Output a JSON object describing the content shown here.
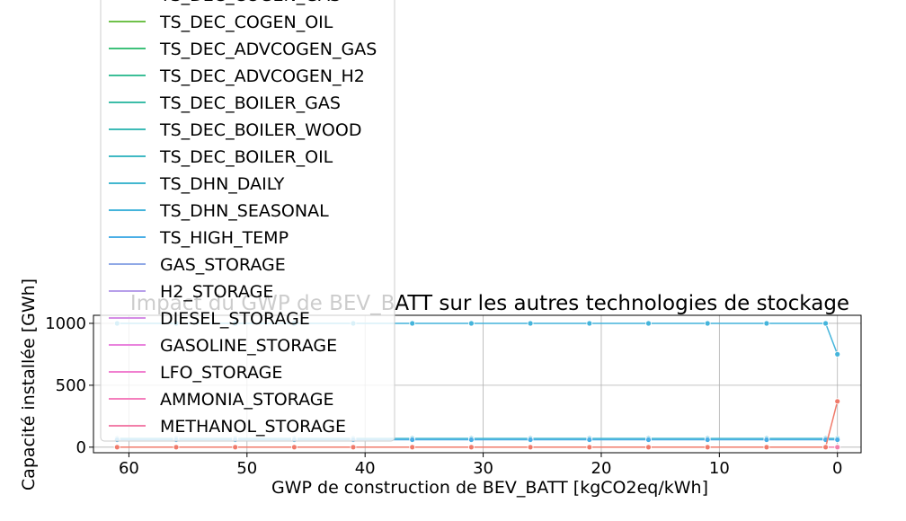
{
  "chart_data": {
    "type": "line",
    "title": "Impact du GWP de BEV_BATT sur les autres technologies de stockage",
    "xlabel": "GWP de construction de BEV_BATT [kgCO2eq/kWh]",
    "ylabel": "Capacité installée [GWh]",
    "x_inverted": true,
    "xlim": [
      63,
      -2
    ],
    "ylim": [
      -45,
      1065
    ],
    "x_ticks": [
      60,
      50,
      40,
      30,
      20,
      10,
      0
    ],
    "y_ticks": [
      0,
      500,
      1000
    ],
    "grid": true,
    "legend_position": "upper-left",
    "x": [
      61,
      56,
      51,
      46,
      41,
      36,
      31,
      26,
      21,
      16,
      11,
      6,
      1,
      0
    ],
    "series": [
      {
        "name": "TS_DEC_COGEN_GAS",
        "color": "#a9b630",
        "values": [
          0,
          0,
          0,
          0,
          0,
          0,
          0,
          0,
          0,
          0,
          0,
          0,
          0,
          0
        ]
      },
      {
        "name": "TS_DEC_COGEN_OIL",
        "color": "#6fc14a",
        "values": [
          0,
          0,
          0,
          0,
          0,
          0,
          0,
          0,
          0,
          0,
          0,
          0,
          0,
          0
        ]
      },
      {
        "name": "TS_DEC_ADVCOGEN_GAS",
        "color": "#3fc17a",
        "values": [
          0,
          0,
          0,
          0,
          0,
          0,
          0,
          0,
          0,
          0,
          0,
          0,
          0,
          0
        ]
      },
      {
        "name": "TS_DEC_ADVCOGEN_H2",
        "color": "#3cbf97",
        "values": [
          0,
          0,
          0,
          0,
          0,
          0,
          0,
          0,
          0,
          0,
          0,
          0,
          0,
          0
        ]
      },
      {
        "name": "TS_DEC_BOILER_GAS",
        "color": "#3dbda8",
        "values": [
          0,
          0,
          0,
          0,
          0,
          0,
          0,
          0,
          0,
          0,
          0,
          0,
          0,
          0
        ]
      },
      {
        "name": "TS_DEC_BOILER_WOOD",
        "color": "#3ebbb7",
        "values": [
          0,
          0,
          0,
          0,
          0,
          0,
          0,
          0,
          0,
          0,
          0,
          0,
          0,
          0
        ]
      },
      {
        "name": "TS_DEC_BOILER_OIL",
        "color": "#40b9c4",
        "values": [
          0,
          0,
          0,
          0,
          0,
          0,
          0,
          0,
          0,
          0,
          0,
          0,
          0,
          0
        ]
      },
      {
        "name": "TS_DHN_DAILY",
        "color": "#42b7cf",
        "values": [
          70,
          70,
          70,
          70,
          70,
          70,
          70,
          70,
          70,
          70,
          70,
          70,
          70,
          70
        ]
      },
      {
        "name": "TS_DHN_SEASONAL",
        "color": "#44b4db",
        "values": [
          1000,
          1000,
          1000,
          1000,
          1000,
          1000,
          1000,
          1000,
          1000,
          1000,
          1000,
          1000,
          1000,
          750
        ]
      },
      {
        "name": "TS_HIGH_TEMP",
        "color": "#4aaee6",
        "values": [
          60,
          60,
          60,
          60,
          60,
          60,
          60,
          60,
          60,
          60,
          60,
          60,
          60,
          60
        ]
      },
      {
        "name": "GAS_STORAGE",
        "color": "#8fa8e6",
        "values": [
          0,
          0,
          0,
          0,
          0,
          0,
          0,
          0,
          0,
          0,
          0,
          0,
          0,
          0
        ]
      },
      {
        "name": "H2_STORAGE",
        "color": "#b79fea",
        "values": [
          0,
          0,
          0,
          0,
          0,
          0,
          0,
          0,
          0,
          0,
          0,
          0,
          0,
          0
        ]
      },
      {
        "name": "DIESEL_STORAGE",
        "color": "#d58ee6",
        "values": [
          0,
          0,
          0,
          0,
          0,
          0,
          0,
          0,
          0,
          0,
          0,
          0,
          0,
          0
        ]
      },
      {
        "name": "GASOLINE_STORAGE",
        "color": "#e983dd",
        "values": [
          0,
          0,
          0,
          0,
          0,
          0,
          0,
          0,
          0,
          0,
          0,
          0,
          0,
          0
        ]
      },
      {
        "name": "LFO_STORAGE",
        "color": "#f07fcf",
        "values": [
          0,
          0,
          0,
          0,
          0,
          0,
          0,
          0,
          0,
          0,
          0,
          0,
          0,
          0
        ]
      },
      {
        "name": "AMMONIA_STORAGE",
        "color": "#f47fbd",
        "values": [
          0,
          0,
          0,
          0,
          0,
          0,
          0,
          0,
          0,
          0,
          0,
          0,
          0,
          0
        ]
      },
      {
        "name": "METHANOL_STORAGE",
        "color": "#f27fa9",
        "values": [
          0,
          0,
          0,
          0,
          0,
          0,
          0,
          0,
          0,
          0,
          0,
          0,
          0,
          0
        ]
      },
      {
        "name": "",
        "color": "#f07a6a",
        "values": [
          0,
          0,
          0,
          0,
          0,
          0,
          0,
          0,
          0,
          0,
          0,
          0,
          0,
          370
        ]
      }
    ]
  }
}
